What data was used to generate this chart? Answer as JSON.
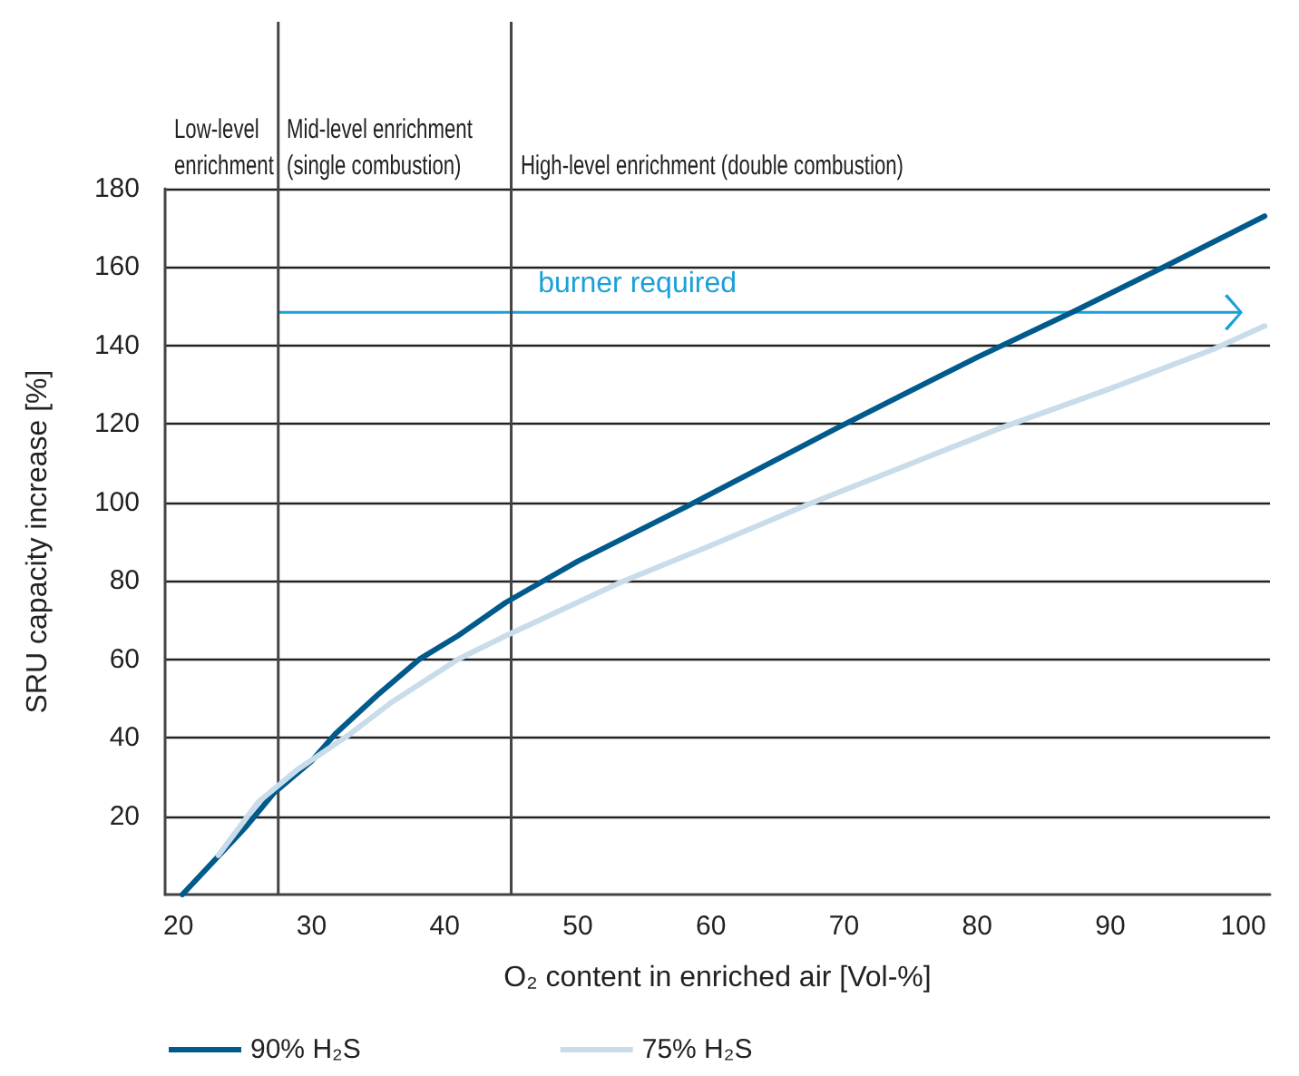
{
  "chart_data": {
    "type": "line",
    "xlabel": "O₂ content in enriched air [Vol-%]",
    "ylabel": "SRU capacity increase [%]",
    "xlim": [
      19,
      102
    ],
    "xticks": [
      20,
      30,
      40,
      50,
      60,
      70,
      80,
      90,
      100
    ],
    "ylim": [
      0,
      180
    ],
    "yticks": [
      20,
      40,
      60,
      80,
      100,
      120,
      140,
      160,
      180
    ],
    "grid": "y",
    "legend": "bottom left",
    "marker": "none",
    "line_style": "solid",
    "series": [
      {
        "name": "90% H₂S",
        "color": "#005a8c",
        "x": [
          20.3,
          25,
          27.2,
          30,
          31.8,
          35,
          38.1,
          41,
          44.6,
          50,
          58.2,
          69.5,
          80,
          87.2,
          94,
          101.6
        ],
        "values": [
          0,
          17,
          26,
          34,
          41,
          51,
          60,
          66,
          74.5,
          85,
          99,
          119,
          137,
          148.6,
          160,
          173
        ]
      },
      {
        "name": "75% H₂S",
        "color": "#c9dcea",
        "x": [
          23,
          26,
          29,
          32.8,
          36,
          41,
          44.6,
          53.2,
          60,
          67.3,
          81.8,
          90,
          97.7,
          101.6
        ],
        "values": [
          10,
          23.6,
          32,
          40.7,
          49,
          60,
          66,
          79.6,
          89,
          99.5,
          119,
          129,
          139,
          145
        ]
      }
    ],
    "ref_lines": [
      {
        "axis": "x",
        "value": 27.5,
        "color": "#444444"
      },
      {
        "axis": "x",
        "value": 45,
        "color": "#444444"
      }
    ],
    "annotations": [
      "Low-level enrichment",
      "Mid-level enrichment (single combustion)",
      "High-level enrichment (double combustion)",
      "burner required"
    ]
  }
}
